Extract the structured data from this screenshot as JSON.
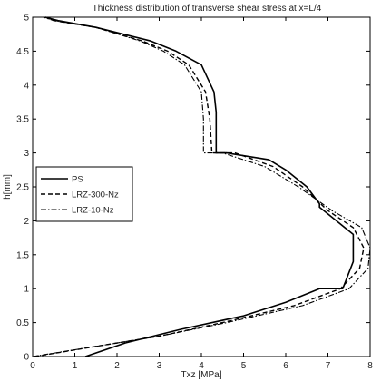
{
  "chart_data": {
    "type": "line",
    "title": "Thickness distribution of transverse shear stress at x=L/4",
    "xlabel": "Txz [MPa]",
    "ylabel": "h[mm]",
    "xlim": [
      0,
      8
    ],
    "ylim": [
      0,
      5
    ],
    "xticks": [
      "0",
      "1",
      "2",
      "3",
      "4",
      "5",
      "6",
      "7",
      "8"
    ],
    "yticks": [
      "0",
      "0.5",
      "1",
      "1.5",
      "2",
      "2.5",
      "3",
      "3.5",
      "4",
      "4.5",
      "5"
    ],
    "grid": false,
    "legend_position": "middle-left",
    "series": [
      {
        "name": "PS",
        "style": "solid",
        "color": "#000000",
        "points": [
          [
            1.25,
            0
          ],
          [
            2.2,
            0.2
          ],
          [
            3.5,
            0.4
          ],
          [
            5.0,
            0.6
          ],
          [
            6.0,
            0.8
          ],
          [
            6.8,
            1.0
          ],
          [
            7.35,
            1.0
          ],
          [
            7.6,
            1.4
          ],
          [
            7.6,
            1.8
          ],
          [
            7.2,
            2.0
          ],
          [
            7.0,
            2.1
          ],
          [
            6.8,
            2.2
          ],
          [
            6.8,
            2.25
          ],
          [
            6.5,
            2.5
          ],
          [
            6.0,
            2.75
          ],
          [
            5.6,
            2.9
          ],
          [
            4.6,
            3.0
          ],
          [
            4.35,
            3.0
          ],
          [
            4.35,
            3.6
          ],
          [
            4.3,
            3.9
          ],
          [
            4.0,
            4.3
          ],
          [
            3.4,
            4.5
          ],
          [
            2.8,
            4.65
          ],
          [
            1.5,
            4.85
          ],
          [
            0.6,
            4.95
          ],
          [
            0.3,
            5.0
          ]
        ]
      },
      {
        "name": "LRZ-300-Nz",
        "style": "dashed",
        "color": "#000000",
        "points": [
          [
            0.05,
            0
          ],
          [
            1.5,
            0.15
          ],
          [
            3.0,
            0.3
          ],
          [
            4.5,
            0.5
          ],
          [
            6.2,
            0.75
          ],
          [
            7.3,
            1.0
          ],
          [
            7.75,
            1.3
          ],
          [
            7.85,
            1.6
          ],
          [
            7.6,
            1.9
          ],
          [
            7.0,
            2.15
          ],
          [
            6.4,
            2.5
          ],
          [
            5.7,
            2.8
          ],
          [
            4.8,
            3.0
          ],
          [
            4.25,
            3.0
          ],
          [
            4.2,
            3.5
          ],
          [
            4.1,
            3.9
          ],
          [
            3.7,
            4.3
          ],
          [
            3.2,
            4.5
          ],
          [
            2.6,
            4.65
          ],
          [
            1.5,
            4.85
          ],
          [
            0.5,
            4.95
          ],
          [
            0.3,
            5.0
          ]
        ]
      },
      {
        "name": "LRZ-10-Nz",
        "style": "dashdot",
        "color": "#000000",
        "points": [
          [
            0.0,
            0
          ],
          [
            1.5,
            0.15
          ],
          [
            3.0,
            0.3
          ],
          [
            4.6,
            0.5
          ],
          [
            6.4,
            0.75
          ],
          [
            7.5,
            1.0
          ],
          [
            7.95,
            1.3
          ],
          [
            8.0,
            1.6
          ],
          [
            7.8,
            1.9
          ],
          [
            7.1,
            2.15
          ],
          [
            6.3,
            2.5
          ],
          [
            5.5,
            2.8
          ],
          [
            4.5,
            3.0
          ],
          [
            4.05,
            3.0
          ],
          [
            4.05,
            3.5
          ],
          [
            4.0,
            3.9
          ],
          [
            3.6,
            4.3
          ],
          [
            3.1,
            4.5
          ],
          [
            2.55,
            4.65
          ],
          [
            1.5,
            4.85
          ],
          [
            0.5,
            4.95
          ],
          [
            0.25,
            5.0
          ]
        ]
      }
    ]
  }
}
